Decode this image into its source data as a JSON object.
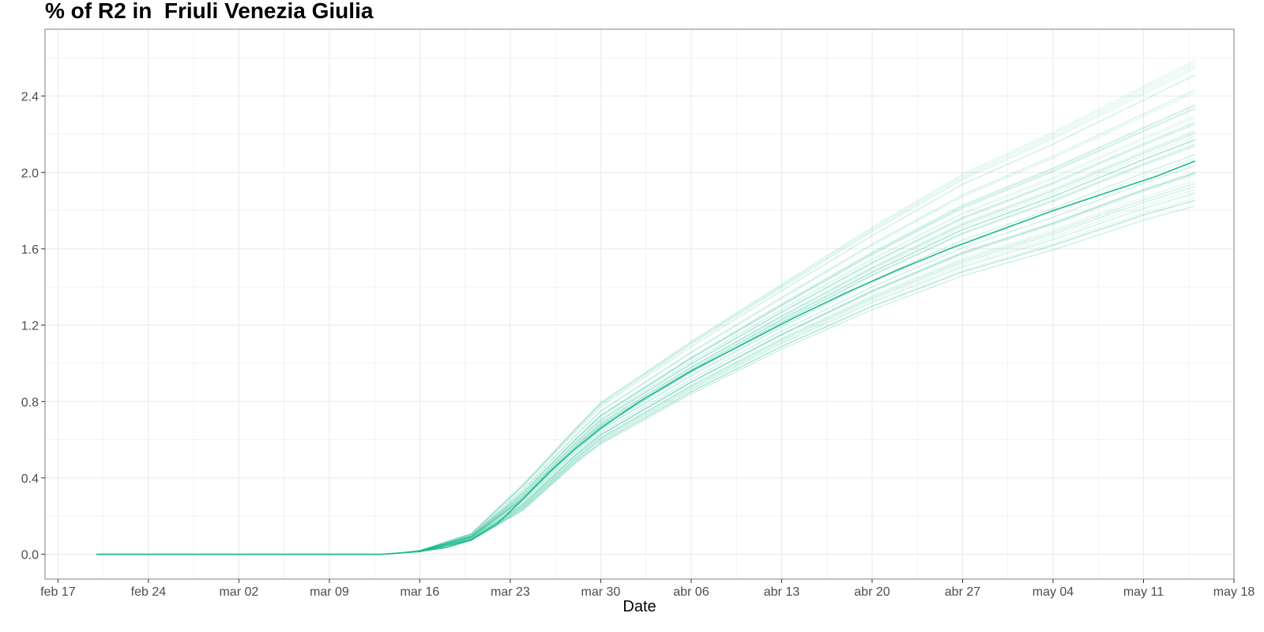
{
  "chart_data": {
    "type": "line",
    "title": "% of R2 in  Friuli Venezia Giulia",
    "xlabel": "Date",
    "ylabel": "",
    "x_axis": {
      "type": "date",
      "range": [
        "2020-02-16",
        "2020-05-18"
      ],
      "tick_dates": [
        "2020-02-17",
        "2020-02-24",
        "2020-03-02",
        "2020-03-09",
        "2020-03-16",
        "2020-03-23",
        "2020-03-30",
        "2020-04-06",
        "2020-04-13",
        "2020-04-20",
        "2020-04-27",
        "2020-05-04",
        "2020-05-11",
        "2020-05-18"
      ],
      "tick_labels": [
        "feb 17",
        "feb 24",
        "mar 02",
        "mar 09",
        "mar 16",
        "mar 23",
        "mar 30",
        "abr 06",
        "abr 13",
        "abr 20",
        "abr 27",
        "may 04",
        "may 11",
        "may 18"
      ]
    },
    "y_axis": {
      "range": [
        -0.13,
        2.75
      ],
      "ticks": [
        0.0,
        0.4,
        0.8,
        1.2,
        1.6,
        2.0,
        2.4
      ],
      "tick_labels": [
        "0.0",
        "0.4",
        "0.8",
        "1.2",
        "1.6",
        "2.0",
        "2.4"
      ]
    },
    "grid": true,
    "legend": "none",
    "colors": {
      "main_line": "#1abc8c",
      "sim_lines": "#1abc8c",
      "grid": "#ebebeb",
      "panel_border": "#7f7f7f"
    },
    "series": [
      {
        "role": "median",
        "x": [
          "2020-02-20",
          "2020-03-13",
          "2020-03-14",
          "2020-03-16",
          "2020-03-18",
          "2020-03-20",
          "2020-03-22",
          "2020-03-24",
          "2020-03-26",
          "2020-03-28",
          "2020-03-30",
          "2020-04-02",
          "2020-04-06",
          "2020-04-10",
          "2020-04-14",
          "2020-04-18",
          "2020-04-22",
          "2020-04-26",
          "2020-04-30",
          "2020-05-04",
          "2020-05-08",
          "2020-05-12",
          "2020-05-15"
        ],
        "y": [
          0.0,
          0.0,
          0.005,
          0.015,
          0.035,
          0.075,
          0.16,
          0.29,
          0.43,
          0.55,
          0.66,
          0.8,
          0.96,
          1.1,
          1.24,
          1.37,
          1.49,
          1.6,
          1.7,
          1.8,
          1.89,
          1.98,
          2.06
        ]
      },
      {
        "role": "simulations",
        "x": [
          "2020-03-16",
          "2020-03-20",
          "2020-03-24",
          "2020-03-28",
          "2020-03-30",
          "2020-04-06",
          "2020-04-13",
          "2020-04-20",
          "2020-04-27",
          "2020-05-04",
          "2020-05-11",
          "2020-05-15"
        ],
        "y_upper": [
          0.02,
          0.11,
          0.37,
          0.66,
          0.8,
          1.12,
          1.42,
          1.72,
          2.0,
          2.22,
          2.46,
          2.6
        ],
        "y_lower": [
          0.012,
          0.07,
          0.22,
          0.46,
          0.56,
          0.82,
          1.05,
          1.25,
          1.42,
          1.55,
          1.7,
          1.77
        ],
        "count": 60
      }
    ]
  }
}
